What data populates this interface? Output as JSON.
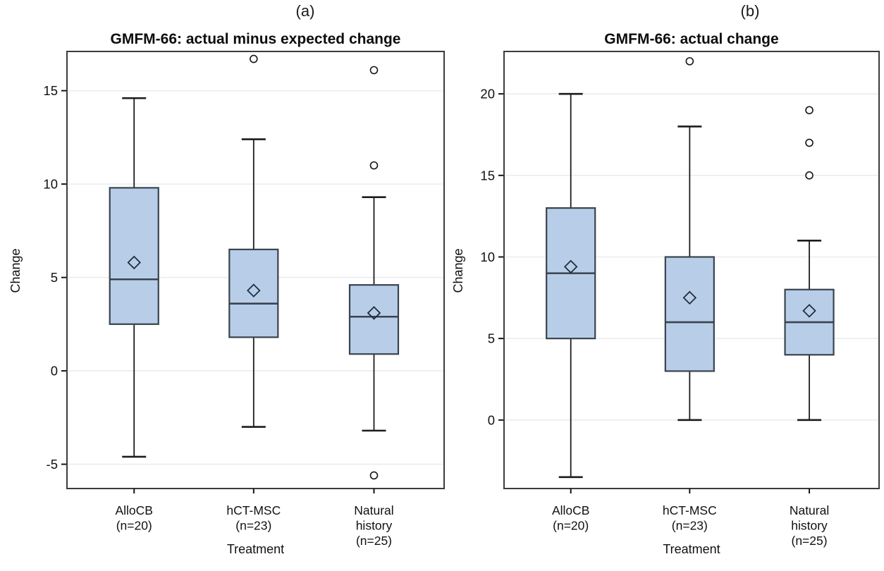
{
  "header": {
    "left": "(a)",
    "right": "(b)"
  },
  "colors": {
    "box_fill": "#b8cee8",
    "box_border": "#39434e",
    "whisker": "#1c1c1c",
    "gridline": "#ececec",
    "panel_border": "#3c3c3c",
    "text": "#111111"
  },
  "chart_data": [
    {
      "type": "box",
      "panel": "a",
      "title": "GMFM-66: actual minus expected change",
      "xlabel": "Treatment",
      "ylabel": "Change",
      "yticks": [
        -5,
        0,
        5,
        10,
        15
      ],
      "ylim": [
        -6.3,
        17.1
      ],
      "grid": true,
      "legend": "none",
      "categories": [
        {
          "label_lines": [
            "AlloCB",
            "(n=20)"
          ],
          "n": 20
        },
        {
          "label_lines": [
            "hCT-MSC",
            "(n=23)"
          ],
          "n": 23
        },
        {
          "label_lines": [
            "Natural",
            "history",
            "(n=25)"
          ],
          "n": 25
        }
      ],
      "boxes": [
        {
          "whisker_low": -4.6,
          "q1": 2.5,
          "median": 4.9,
          "q3": 9.8,
          "whisker_high": 14.6,
          "mean": 5.8,
          "outliers": []
        },
        {
          "whisker_low": -3.0,
          "q1": 1.8,
          "median": 3.6,
          "q3": 6.5,
          "whisker_high": 12.4,
          "mean": 4.3,
          "outliers": [
            16.7
          ]
        },
        {
          "whisker_low": -3.2,
          "q1": 0.9,
          "median": 2.9,
          "q3": 4.6,
          "whisker_high": 9.3,
          "mean": 3.1,
          "outliers": [
            16.1,
            11.0,
            -5.6
          ]
        }
      ]
    },
    {
      "type": "box",
      "panel": "b",
      "title": "GMFM-66: actual change",
      "xlabel": "Treatment",
      "ylabel": "Change",
      "yticks": [
        0,
        5,
        10,
        15,
        20
      ],
      "ylim": [
        -4.2,
        22.6
      ],
      "grid": true,
      "legend": "none",
      "categories": [
        {
          "label_lines": [
            "AlloCB",
            "(n=20)"
          ],
          "n": 20
        },
        {
          "label_lines": [
            "hCT-MSC",
            "(n=23)"
          ],
          "n": 23
        },
        {
          "label_lines": [
            "Natural",
            "history",
            "(n=25)"
          ],
          "n": 25
        }
      ],
      "boxes": [
        {
          "whisker_low": -3.5,
          "q1": 5,
          "median": 9,
          "q3": 13,
          "whisker_high": 20,
          "mean": 9.4,
          "outliers": []
        },
        {
          "whisker_low": 0,
          "q1": 3,
          "median": 6,
          "q3": 10,
          "whisker_high": 18,
          "mean": 7.5,
          "outliers": [
            22
          ]
        },
        {
          "whisker_low": 0,
          "q1": 4,
          "median": 6,
          "q3": 8,
          "whisker_high": 11,
          "mean": 6.7,
          "outliers": [
            19,
            17,
            15
          ]
        }
      ]
    }
  ]
}
